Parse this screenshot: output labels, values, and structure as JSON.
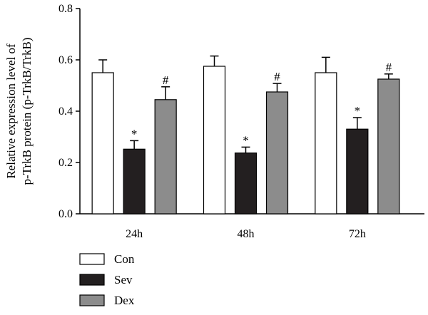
{
  "chart_data": {
    "type": "bar",
    "title": "",
    "xlabel": "",
    "ylabel_lines": [
      "Relative expression level of",
      "p-TrkB protein (p-TrkB/TrkB)"
    ],
    "ylim": [
      0,
      0.8
    ],
    "yticks": [
      "0.0",
      "0.2",
      "0.4",
      "0.6",
      "0.8"
    ],
    "categories": [
      "24h",
      "48h",
      "72h"
    ],
    "series": [
      {
        "name": "Con",
        "color": "#ffffff",
        "values": [
          0.55,
          0.575,
          0.55
        ],
        "errors": [
          0.05,
          0.04,
          0.06
        ],
        "markers": [
          "",
          "",
          ""
        ]
      },
      {
        "name": "Sev",
        "color": "#231f20",
        "values": [
          0.252,
          0.237,
          0.33
        ],
        "errors": [
          0.033,
          0.023,
          0.045
        ],
        "markers": [
          "*",
          "*",
          "*"
        ]
      },
      {
        "name": "Dex",
        "color": "#8c8c8c",
        "values": [
          0.445,
          0.475,
          0.525
        ],
        "errors": [
          0.05,
          0.033,
          0.02
        ],
        "markers": [
          "#",
          "#",
          "#"
        ]
      }
    ],
    "legend_position": "bottom-left",
    "grid": false
  }
}
